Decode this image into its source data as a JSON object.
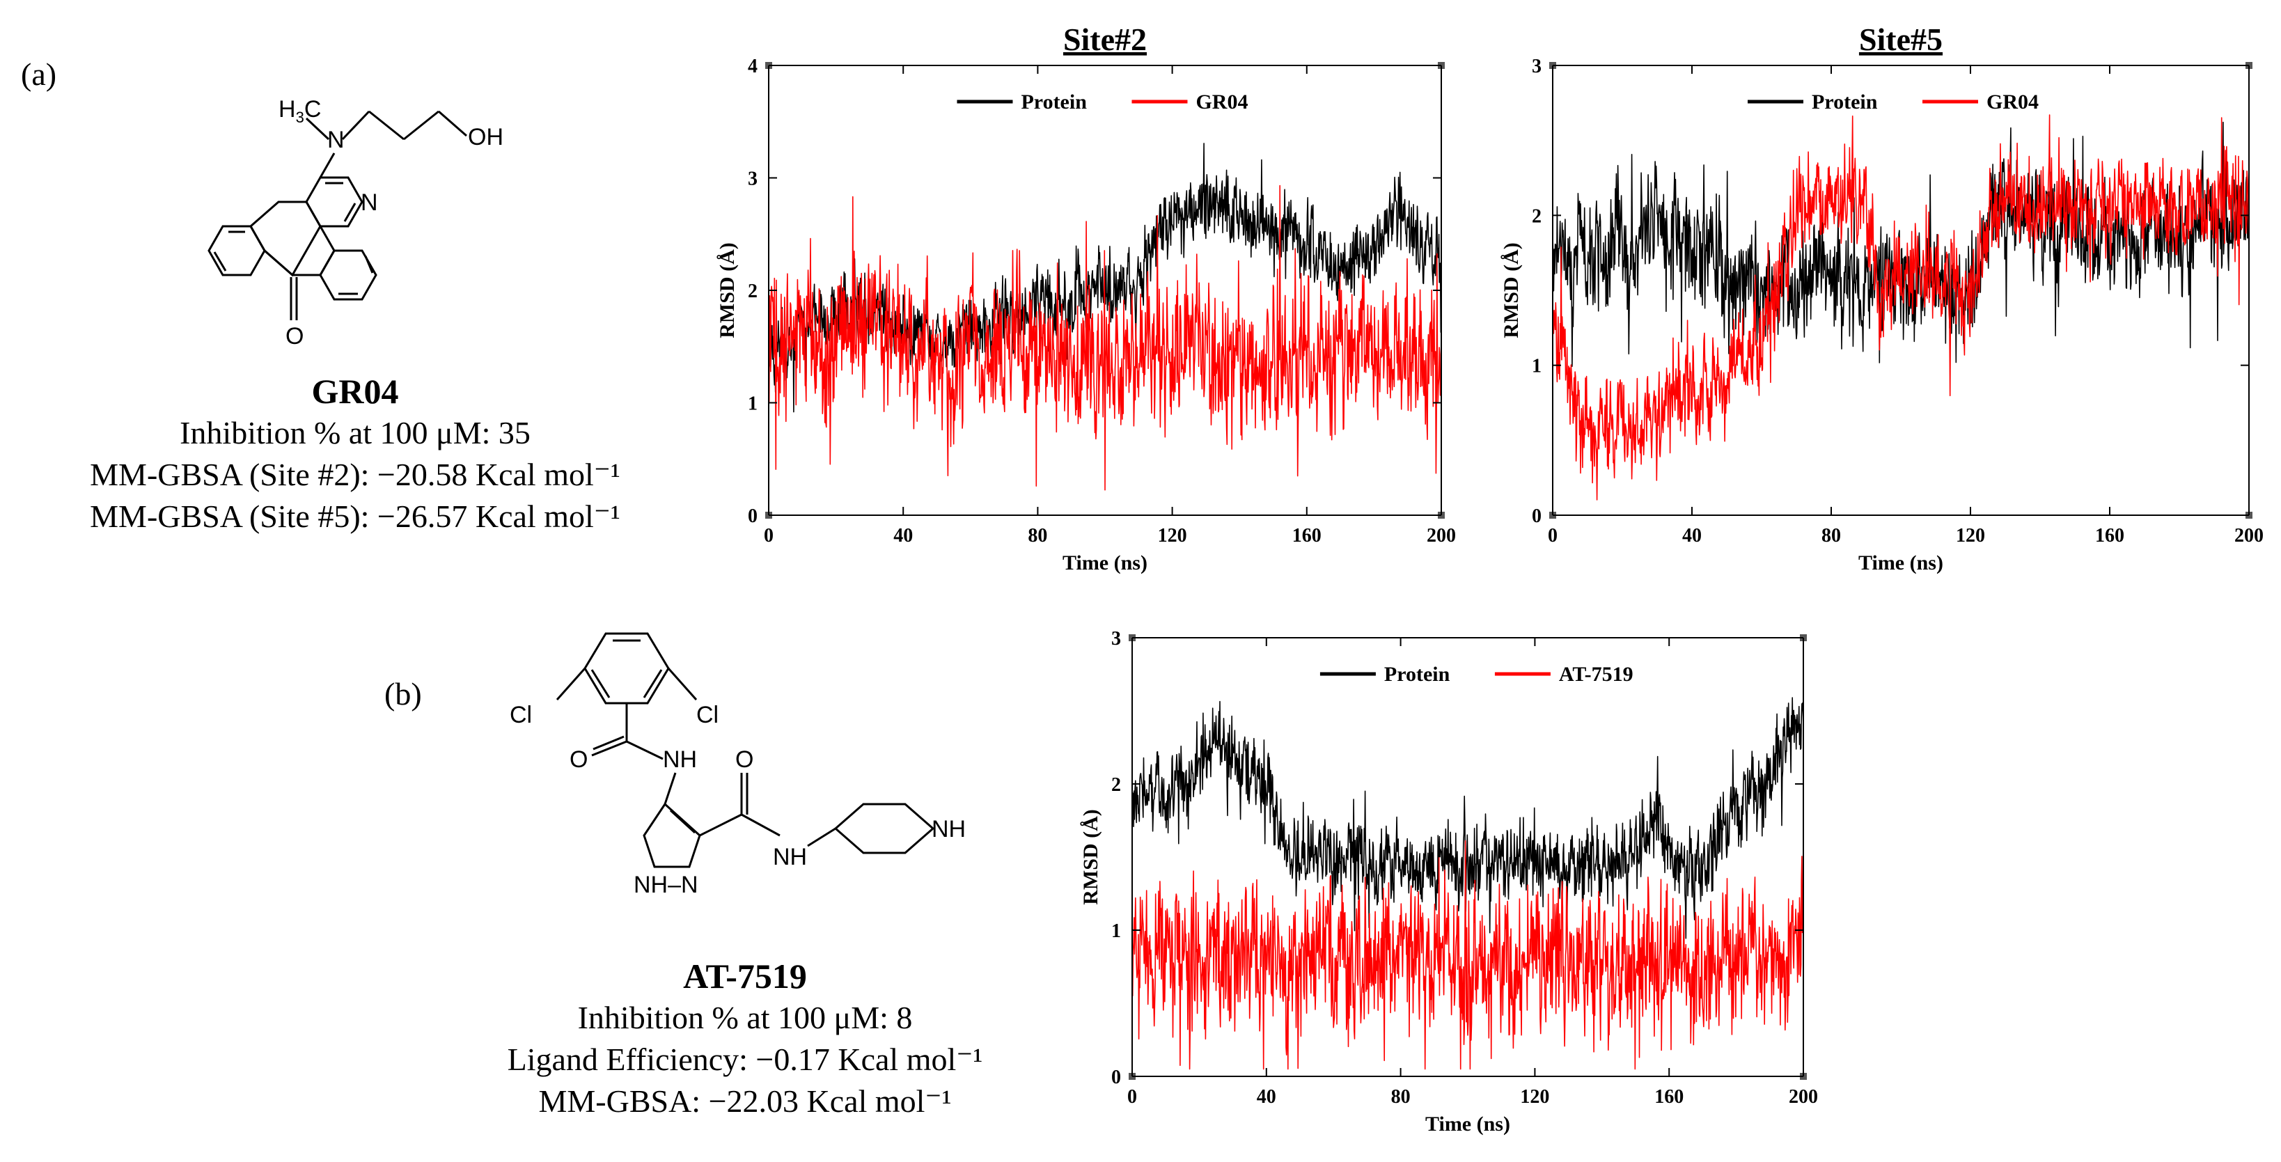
{
  "panel_a": {
    "label": "(a)",
    "compound": {
      "name": "GR04",
      "lines": [
        "Inhibition % at 100 μM: 35",
        "MM-GBSA (Site #2): −20.58 Kcal mol⁻¹",
        "MM-GBSA (Site #5): −26.57 Kcal mol⁻¹"
      ],
      "atom_labels": {
        "methyl": "H3C",
        "methyl_sub": "3",
        "amine_n": "N",
        "hydroxyl": "OH",
        "ring_n": "N",
        "carbonyl_o": "O"
      }
    }
  },
  "panel_b": {
    "label": "(b)",
    "compound": {
      "name": "AT-7519",
      "lines": [
        "Inhibition % at 100 μM: 8",
        "Ligand Efficiency: −0.17 Kcal mol⁻¹",
        "MM-GBSA: −22.03 Kcal mol⁻¹"
      ],
      "atom_labels": {
        "cl_left": "Cl",
        "cl_right": "Cl",
        "amide_o1": "O",
        "amide_nh1": "NH",
        "amide_o2": "O",
        "amide_nh2": "NH",
        "pyrazole": "NH–N",
        "piperidine_nh": "NH"
      }
    }
  },
  "chart_data": [
    {
      "type": "line",
      "title": "Site#2",
      "xlabel": "Time (ns)",
      "ylabel": "RMSD (Å)",
      "xlim": [
        0,
        200
      ],
      "ylim": [
        0,
        4
      ],
      "xticks": [
        0,
        40,
        80,
        120,
        160,
        200
      ],
      "yticks": [
        0,
        1,
        2,
        3,
        4
      ],
      "legend": {
        "placement": "top-center"
      },
      "series": [
        {
          "name": "Protein",
          "color": "#000000",
          "noise": 0.38,
          "profile": [
            [
              0,
              1.45
            ],
            [
              10,
              1.7
            ],
            [
              20,
              1.8
            ],
            [
              30,
              1.85
            ],
            [
              40,
              1.65
            ],
            [
              50,
              1.5
            ],
            [
              60,
              1.65
            ],
            [
              70,
              1.75
            ],
            [
              80,
              1.85
            ],
            [
              90,
              1.95
            ],
            [
              100,
              2.0
            ],
            [
              110,
              2.05
            ],
            [
              115,
              2.45
            ],
            [
              120,
              2.6
            ],
            [
              130,
              2.75
            ],
            [
              140,
              2.65
            ],
            [
              150,
              2.6
            ],
            [
              160,
              2.45
            ],
            [
              170,
              2.2
            ],
            [
              180,
              2.3
            ],
            [
              185,
              2.65
            ],
            [
              190,
              2.55
            ],
            [
              195,
              2.4
            ],
            [
              200,
              2.2
            ]
          ]
        },
        {
          "name": "GR04",
          "color": "#ff0000",
          "noise": 0.75,
          "profile": [
            [
              0,
              1.5
            ],
            [
              10,
              1.55
            ],
            [
              20,
              1.55
            ],
            [
              30,
              1.65
            ],
            [
              40,
              1.5
            ],
            [
              50,
              1.45
            ],
            [
              60,
              1.55
            ],
            [
              70,
              1.5
            ],
            [
              80,
              1.45
            ],
            [
              90,
              1.4
            ],
            [
              100,
              1.35
            ],
            [
              110,
              1.4
            ],
            [
              120,
              1.4
            ],
            [
              140,
              1.4
            ],
            [
              160,
              1.4
            ],
            [
              180,
              1.45
            ],
            [
              200,
              1.3
            ]
          ]
        }
      ]
    },
    {
      "type": "line",
      "title": "Site#5",
      "xlabel": "Time (ns)",
      "ylabel": "RMSD (Å)",
      "xlim": [
        0,
        200
      ],
      "ylim": [
        0,
        3
      ],
      "xticks": [
        0,
        40,
        80,
        120,
        160,
        200
      ],
      "yticks": [
        0,
        1,
        2,
        3
      ],
      "legend": {
        "placement": "top-center"
      },
      "series": [
        {
          "name": "Protein",
          "color": "#000000",
          "noise": 0.45,
          "profile": [
            [
              0,
              1.6
            ],
            [
              10,
              1.75
            ],
            [
              20,
              1.85
            ],
            [
              30,
              1.9
            ],
            [
              40,
              1.8
            ],
            [
              50,
              1.6
            ],
            [
              60,
              1.5
            ],
            [
              70,
              1.5
            ],
            [
              80,
              1.6
            ],
            [
              90,
              1.5
            ],
            [
              100,
              1.45
            ],
            [
              110,
              1.5
            ],
            [
              120,
              1.5
            ],
            [
              125,
              1.9
            ],
            [
              130,
              2.05
            ],
            [
              140,
              1.9
            ],
            [
              150,
              1.9
            ],
            [
              160,
              1.85
            ],
            [
              170,
              1.85
            ],
            [
              180,
              1.9
            ],
            [
              190,
              1.95
            ],
            [
              200,
              2.0
            ]
          ]
        },
        {
          "name": "GR04",
          "color": "#ff0000",
          "noise": 0.4,
          "profile": [
            [
              0,
              1.2
            ],
            [
              5,
              0.8
            ],
            [
              10,
              0.6
            ],
            [
              20,
              0.6
            ],
            [
              30,
              0.7
            ],
            [
              40,
              0.8
            ],
            [
              50,
              0.95
            ],
            [
              60,
              1.2
            ],
            [
              65,
              1.5
            ],
            [
              70,
              2.05
            ],
            [
              80,
              2.1
            ],
            [
              90,
              2.05
            ],
            [
              93,
              1.5
            ],
            [
              100,
              1.6
            ],
            [
              105,
              1.7
            ],
            [
              110,
              1.6
            ],
            [
              115,
              1.5
            ],
            [
              120,
              1.45
            ],
            [
              125,
              1.95
            ],
            [
              130,
              2.05
            ],
            [
              140,
              2.05
            ],
            [
              160,
              2.1
            ],
            [
              180,
              2.05
            ],
            [
              200,
              2.05
            ]
          ]
        }
      ]
    },
    {
      "type": "line",
      "title": "",
      "xlabel": "Time (ns)",
      "ylabel": "RMSD (Å)",
      "xlim": [
        0,
        200
      ],
      "ylim": [
        0,
        3
      ],
      "xticks": [
        0,
        40,
        80,
        120,
        160,
        200
      ],
      "yticks": [
        0,
        1,
        2,
        3
      ],
      "legend": {
        "placement": "top-center"
      },
      "series": [
        {
          "name": "Protein",
          "color": "#000000",
          "noise": 0.32,
          "profile": [
            [
              0,
              1.85
            ],
            [
              10,
              1.95
            ],
            [
              20,
              2.1
            ],
            [
              25,
              2.3
            ],
            [
              30,
              2.15
            ],
            [
              40,
              2.0
            ],
            [
              45,
              1.55
            ],
            [
              60,
              1.5
            ],
            [
              80,
              1.45
            ],
            [
              100,
              1.45
            ],
            [
              120,
              1.45
            ],
            [
              140,
              1.45
            ],
            [
              150,
              1.5
            ],
            [
              155,
              1.8
            ],
            [
              160,
              1.5
            ],
            [
              170,
              1.45
            ],
            [
              180,
              1.8
            ],
            [
              190,
              2.05
            ],
            [
              200,
              2.5
            ]
          ]
        },
        {
          "name": "AT-7519",
          "color": "#ff0000",
          "noise": 0.6,
          "profile": [
            [
              0,
              0.8
            ],
            [
              20,
              0.85
            ],
            [
              40,
              0.75
            ],
            [
              60,
              0.8
            ],
            [
              80,
              0.85
            ],
            [
              100,
              0.75
            ],
            [
              120,
              0.85
            ],
            [
              140,
              0.8
            ],
            [
              160,
              0.75
            ],
            [
              180,
              0.8
            ],
            [
              200,
              0.9
            ]
          ]
        }
      ]
    }
  ]
}
